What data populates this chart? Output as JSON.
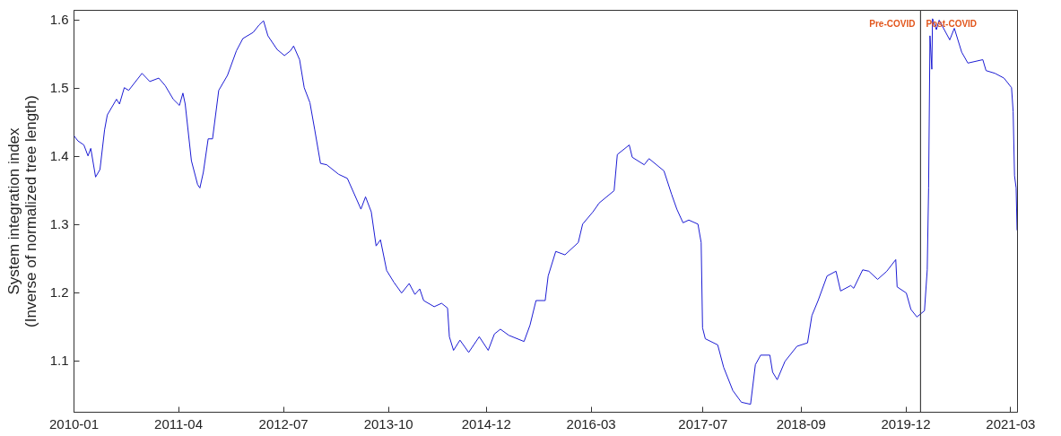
{
  "chart_data": {
    "type": "line",
    "ylabel": "System integration index\n(Inverse of normalized tree length)",
    "xlim": [
      "2010-01-01",
      "2021-03-31"
    ],
    "ylim": [
      1.025,
      1.614
    ],
    "xticks": [
      "2010-01",
      "2011-04",
      "2012-07",
      "2013-10",
      "2014-12",
      "2016-03",
      "2017-07",
      "2018-09",
      "2019-12",
      "2021-03"
    ],
    "yticks": [
      1.1,
      1.2,
      1.3,
      1.4,
      1.5,
      1.6
    ],
    "grid": false,
    "line_style": "solid",
    "marker": "none",
    "ref_lines": [
      {
        "axis": "x",
        "value": "2020-02-05",
        "color": "#404040"
      }
    ],
    "annotations": [
      "Pre-COVID",
      "Post-COVID"
    ],
    "series": [
      {
        "color": "#1c1cd4",
        "x": [
          "2010-01-04",
          "2010-01-20",
          "2010-02-15",
          "2010-03-05",
          "2010-03-17",
          "2010-04-07",
          "2010-04-26",
          "2010-05-16",
          "2010-05-28",
          "2010-07-07",
          "2010-07-20",
          "2010-08-10",
          "2010-08-29",
          "2010-10-26",
          "2010-11-29",
          "2011-01-07",
          "2011-02-04",
          "2011-03-11",
          "2011-04-07",
          "2011-04-22",
          "2011-05-02",
          "2011-05-29",
          "2011-06-25",
          "2011-07-05",
          "2011-07-20",
          "2011-08-10",
          "2011-08-29",
          "2011-09-25",
          "2011-11-02",
          "2011-12-11",
          "2012-01-08",
          "2012-02-22",
          "2012-03-19",
          "2012-04-07",
          "2012-04-26",
          "2012-06-05",
          "2012-07-07",
          "2012-08-02",
          "2012-08-16",
          "2012-09-11",
          "2012-10-01",
          "2012-10-26",
          "2012-11-16",
          "2012-12-11",
          "2013-01-07",
          "2013-02-28",
          "2013-04-07",
          "2013-06-05",
          "2013-06-25",
          "2013-07-20",
          "2013-08-10",
          "2013-08-29",
          "2013-09-25",
          "2013-10-26",
          "2013-11-29",
          "2014-01-01",
          "2014-01-26",
          "2014-02-16",
          "2014-03-05",
          "2014-04-20",
          "2014-05-22",
          "2014-06-17",
          "2014-06-25",
          "2014-07-13",
          "2014-08-10",
          "2014-09-17",
          "2014-11-02",
          "2014-12-11",
          "2015-01-07",
          "2015-02-02",
          "2015-03-11",
          "2015-05-16",
          "2015-06-11",
          "2015-07-07",
          "2015-08-16",
          "2015-08-29",
          "2015-10-01",
          "2015-11-10",
          "2016-01-07",
          "2016-01-26",
          "2016-03-11",
          "2016-04-07",
          "2016-06-11",
          "2016-06-25",
          "2016-08-16",
          "2016-08-29",
          "2016-10-20",
          "2016-11-10",
          "2017-01-14",
          "2017-02-16",
          "2017-03-11",
          "2017-04-07",
          "2017-05-02",
          "2017-06-11",
          "2017-06-25",
          "2017-07-01",
          "2017-07-13",
          "2017-09-05",
          "2017-10-01",
          "2017-11-10",
          "2017-12-17",
          "2018-01-26",
          "2018-02-16",
          "2018-03-11",
          "2018-04-20",
          "2018-05-02",
          "2018-05-22",
          "2018-06-25",
          "2018-08-16",
          "2018-10-01",
          "2018-10-20",
          "2018-11-16",
          "2018-12-25",
          "2019-02-02",
          "2019-02-22",
          "2019-04-07",
          "2019-04-20",
          "2019-05-29",
          "2019-06-25",
          "2019-08-02",
          "2019-09-11",
          "2019-10-20",
          "2019-10-26",
          "2019-12-05",
          "2019-12-25",
          "2020-01-20",
          "2020-02-22",
          "2020-03-05",
          "2020-03-11",
          "2020-03-17",
          "2020-03-25",
          "2020-03-28",
          "2020-04-14",
          "2020-04-26",
          "2020-06-11",
          "2020-07-01",
          "2020-08-02",
          "2020-08-29",
          "2020-11-02",
          "2020-11-16",
          "2020-12-25",
          "2021-02-02",
          "2021-03-07",
          "2021-03-14",
          "2021-03-20",
          "2021-03-27",
          "2021-03-31"
        ],
        "values": [
          1.429,
          1.422,
          1.416,
          1.4,
          1.411,
          1.369,
          1.38,
          1.438,
          1.46,
          1.483,
          1.476,
          1.5,
          1.496,
          1.521,
          1.509,
          1.514,
          1.503,
          1.483,
          1.474,
          1.492,
          1.476,
          1.393,
          1.358,
          1.353,
          1.376,
          1.425,
          1.425,
          1.496,
          1.518,
          1.554,
          1.572,
          1.581,
          1.592,
          1.598,
          1.576,
          1.556,
          1.547,
          1.554,
          1.561,
          1.541,
          1.5,
          1.478,
          1.438,
          1.389,
          1.387,
          1.373,
          1.367,
          1.322,
          1.34,
          1.318,
          1.268,
          1.277,
          1.232,
          1.215,
          1.199,
          1.213,
          1.197,
          1.205,
          1.188,
          1.179,
          1.184,
          1.177,
          1.135,
          1.115,
          1.13,
          1.112,
          1.135,
          1.115,
          1.139,
          1.146,
          1.137,
          1.128,
          1.152,
          1.188,
          1.188,
          1.224,
          1.26,
          1.255,
          1.273,
          1.3,
          1.318,
          1.331,
          1.349,
          1.402,
          1.416,
          1.398,
          1.387,
          1.396,
          1.378,
          1.344,
          1.322,
          1.302,
          1.306,
          1.3,
          1.273,
          1.148,
          1.132,
          1.123,
          1.09,
          1.056,
          1.039,
          1.036,
          1.094,
          1.108,
          1.108,
          1.083,
          1.072,
          1.099,
          1.121,
          1.126,
          1.166,
          1.188,
          1.224,
          1.231,
          1.202,
          1.21,
          1.206,
          1.233,
          1.231,
          1.219,
          1.231,
          1.248,
          1.208,
          1.199,
          1.175,
          1.164,
          1.173,
          1.233,
          1.353,
          1.576,
          1.527,
          1.601,
          1.585,
          1.599,
          1.57,
          1.587,
          1.552,
          1.536,
          1.541,
          1.525,
          1.521,
          1.514,
          1.5,
          1.465,
          1.371,
          1.353,
          1.291
        ]
      }
    ]
  }
}
